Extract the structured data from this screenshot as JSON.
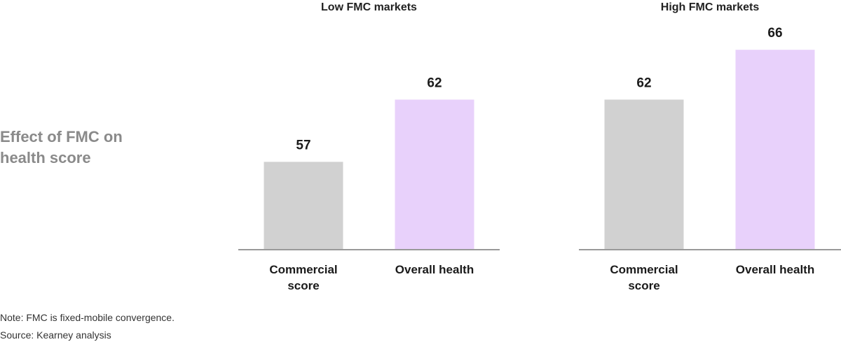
{
  "title": "Effect of FMC on health score",
  "chart_data": [
    {
      "type": "bar",
      "title": "Low FMC markets",
      "categories": [
        "Commercial score",
        "Overall health"
      ],
      "values": [
        57,
        62
      ],
      "colors": [
        "#d1d1d1",
        "#e8d1fb"
      ],
      "ylim": [
        50,
        70
      ]
    },
    {
      "type": "bar",
      "title": "High FMC markets",
      "categories": [
        "Commercial score",
        "Overall health"
      ],
      "values": [
        62,
        66
      ],
      "colors": [
        "#d1d1d1",
        "#e8d1fb"
      ],
      "ylim": [
        50,
        70
      ]
    }
  ],
  "notes": [
    "Note: FMC is fixed-mobile convergence.",
    "Source: Kearney analysis"
  ]
}
